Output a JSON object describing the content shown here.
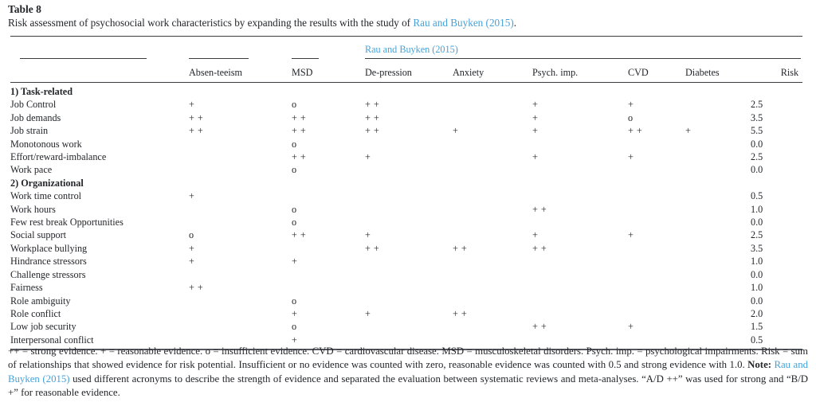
{
  "title": "Table 8",
  "caption": {
    "prefix": "Risk assessment of psychosocial work characteristics by expanding the results with the study of ",
    "link": "Rau and Buyken (2015)",
    "suffix": "."
  },
  "table": {
    "spanner": "Rau and Buyken (2015)",
    "columns": [
      "",
      "Absen-teeism",
      "MSD",
      "De-pression",
      "Anxiety",
      "Psych. imp.",
      "CVD",
      "Diabetes",
      "Risk"
    ],
    "rows": [
      {
        "label": "1) Task-related",
        "group": true,
        "cells": [
          "",
          "",
          "",
          "",
          "",
          "",
          "",
          ""
        ]
      },
      {
        "label": "Job Control",
        "cells": [
          "+",
          "o",
          "++",
          "",
          "+",
          "+",
          "",
          "2.5"
        ]
      },
      {
        "label": "Job demands",
        "cells": [
          "++",
          "++",
          "++",
          "",
          "+",
          "o",
          "",
          "3.5"
        ]
      },
      {
        "label": "Job strain",
        "cells": [
          "++",
          "++",
          "++",
          "+",
          "+",
          "++",
          "+",
          "5.5"
        ]
      },
      {
        "label": "Monotonous work",
        "cells": [
          "",
          "o",
          "",
          "",
          "",
          "",
          "",
          "0.0"
        ]
      },
      {
        "label": "Effort/reward-imbalance",
        "cells": [
          "",
          "++",
          "+",
          "",
          "+",
          "+",
          "",
          "2.5"
        ]
      },
      {
        "label": "Work pace",
        "cells": [
          "",
          "o",
          "",
          "",
          "",
          "",
          "",
          "0.0"
        ]
      },
      {
        "label": "2) Organizational",
        "group": true,
        "cells": [
          "",
          "",
          "",
          "",
          "",
          "",
          "",
          ""
        ]
      },
      {
        "label": "Work time control",
        "cells": [
          "+",
          "",
          "",
          "",
          "",
          "",
          "",
          "0.5"
        ]
      },
      {
        "label": "Work hours",
        "cells": [
          "",
          "o",
          "",
          "",
          "++",
          "",
          "",
          "1.0"
        ]
      },
      {
        "label": "Few rest break Opportunities",
        "cells": [
          "",
          "o",
          "",
          "",
          "",
          "",
          "",
          "0.0"
        ]
      },
      {
        "label": "Social support",
        "cells": [
          "o",
          "++",
          "+",
          "",
          "+",
          "+",
          "",
          "2.5"
        ]
      },
      {
        "label": "Workplace bullying",
        "cells": [
          "+",
          "",
          "++",
          "++",
          "++",
          "",
          "",
          "3.5"
        ]
      },
      {
        "label": "Hindrance stressors",
        "cells": [
          "+",
          "+",
          "",
          "",
          "",
          "",
          "",
          "1.0"
        ]
      },
      {
        "label": "Challenge stressors",
        "cells": [
          "",
          "",
          "",
          "",
          "",
          "",
          "",
          "0.0"
        ]
      },
      {
        "label": "Fairness",
        "cells": [
          "++",
          "",
          "",
          "",
          "",
          "",
          "",
          "1.0"
        ]
      },
      {
        "label": "Role ambiguity",
        "cells": [
          "",
          "o",
          "",
          "",
          "",
          "",
          "",
          "0.0"
        ]
      },
      {
        "label": "Role conflict",
        "cells": [
          "",
          "+",
          "+",
          "++",
          "",
          "",
          "",
          "2.0"
        ]
      },
      {
        "label": "Low job security",
        "cells": [
          "",
          "o",
          "",
          "",
          "++",
          "+",
          "",
          "1.5"
        ]
      },
      {
        "label": "Interpersonal conflict",
        "cells": [
          "",
          "+",
          "",
          "",
          "",
          "",
          "",
          "0.5"
        ]
      }
    ]
  },
  "footnote": {
    "part1": "++ = strong evidence. + = reasonable evidence. o = insufficient evidence. CVD = cardiovascular disease. MSD = musculoskeletal disorders. Psych. imp. = psychological impairments. Risk = sum of relationships that showed evidence for risk potential. Insufficient or no evidence was counted with zero, reasonable evidence was counted with 0.5 and strong evidence with 1.0. ",
    "note_label": "Note:",
    "spacer": " ",
    "link": "Rau and Buyken (2015)",
    "part2": " used different acronyms to describe the strength of evidence and separated the evaluation between systematic reviews and meta-analyses. “A/D ++” was used for strong and “B/D +” for reasonable evidence."
  },
  "colors": {
    "link_blue": "#46a2d8",
    "text": "#24262a",
    "rule": "#3a3c40"
  }
}
